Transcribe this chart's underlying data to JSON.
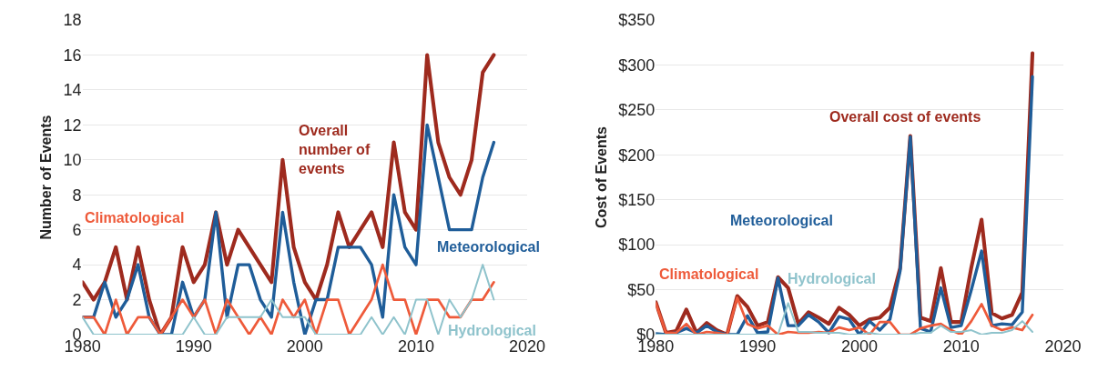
{
  "chart_data": [
    {
      "type": "line",
      "ylabel": "Number of Events",
      "x": [
        1980,
        1981,
        1982,
        1983,
        1984,
        1985,
        1986,
        1987,
        1988,
        1989,
        1990,
        1991,
        1992,
        1993,
        1994,
        1995,
        1996,
        1997,
        1998,
        1999,
        2000,
        2001,
        2002,
        2003,
        2004,
        2005,
        2006,
        2007,
        2008,
        2009,
        2010,
        2011,
        2012,
        2013,
        2014,
        2015,
        2016,
        2017
      ],
      "series": [
        {
          "name": "Overall number of events",
          "color": "#9e2a1e",
          "values": [
            3,
            2,
            3,
            5,
            2,
            5,
            2,
            0,
            1,
            5,
            3,
            4,
            7,
            4,
            6,
            5,
            4,
            3,
            10,
            5,
            3,
            2,
            4,
            7,
            5,
            6,
            7,
            5,
            11,
            7,
            6,
            16,
            11,
            9,
            8,
            10,
            15,
            16
          ]
        },
        {
          "name": "Meteorological",
          "color": "#1f5d99",
          "values": [
            1,
            1,
            3,
            1,
            2,
            4,
            1,
            0,
            0,
            3,
            1,
            2,
            7,
            1,
            4,
            4,
            2,
            1,
            7,
            3,
            0,
            2,
            2,
            5,
            5,
            5,
            4,
            1,
            8,
            5,
            4,
            12,
            9,
            6,
            6,
            6,
            9,
            11
          ]
        },
        {
          "name": "Climatological",
          "color": "#ee5a3a",
          "values": [
            1,
            1,
            0,
            2,
            0,
            1,
            1,
            0,
            1,
            2,
            1,
            2,
            0,
            2,
            1,
            0,
            1,
            0,
            2,
            1,
            2,
            0,
            2,
            2,
            0,
            1,
            2,
            4,
            2,
            2,
            0,
            2,
            2,
            1,
            1,
            2,
            2,
            3
          ]
        },
        {
          "name": "Hydrological",
          "color": "#8fc3cc",
          "values": [
            1,
            0,
            0,
            0,
            0,
            0,
            0,
            0,
            0,
            0,
            1,
            0,
            0,
            1,
            1,
            1,
            1,
            2,
            1,
            1,
            1,
            0,
            0,
            0,
            0,
            0,
            1,
            0,
            1,
            0,
            2,
            2,
            0,
            2,
            1,
            2,
            4,
            2
          ]
        }
      ],
      "xlim": [
        1980,
        2020
      ],
      "xticks": [
        1980,
        1990,
        2000,
        2010,
        2020
      ],
      "ylim": [
        0,
        18
      ],
      "yticks": [
        0,
        2,
        4,
        6,
        8,
        10,
        12,
        14,
        16,
        18
      ],
      "grid": "y",
      "legend": false,
      "marker": "none",
      "line_style": "solid"
    },
    {
      "type": "line",
      "ylabel": "Cost of Events",
      "x": [
        1980,
        1981,
        1982,
        1983,
        1984,
        1985,
        1986,
        1987,
        1988,
        1989,
        1990,
        1991,
        1992,
        1993,
        1994,
        1995,
        1996,
        1997,
        1998,
        1999,
        2000,
        2001,
        2002,
        2003,
        2004,
        2005,
        2006,
        2007,
        2008,
        2009,
        2010,
        2011,
        2012,
        2013,
        2014,
        2015,
        2016,
        2017
      ],
      "series": [
        {
          "name": "Overall cost of events",
          "color": "#9e2a1e",
          "values": [
            36,
            2,
            4,
            28,
            2,
            13,
            5,
            0,
            43,
            31,
            10,
            14,
            64,
            52,
            12,
            25,
            19,
            12,
            30,
            22,
            10,
            17,
            19,
            30,
            74,
            221,
            19,
            15,
            74,
            14,
            14,
            75,
            128,
            24,
            18,
            22,
            47,
            313
          ]
        },
        {
          "name": "Meteorological",
          "color": "#1f5d99",
          "values": [
            1,
            0,
            2,
            7,
            2,
            10,
            3,
            0,
            0,
            21,
            2,
            3,
            63,
            10,
            10,
            22,
            14,
            2,
            20,
            17,
            0,
            15,
            5,
            17,
            71,
            220,
            7,
            3,
            52,
            8,
            10,
            50,
            93,
            10,
            12,
            11,
            25,
            287
          ]
        },
        {
          "name": "Climatological",
          "color": "#ee5a3a",
          "values": [
            35,
            2,
            2,
            12,
            0,
            3,
            2,
            0,
            41,
            12,
            7,
            10,
            0,
            3,
            2,
            2,
            3,
            2,
            8,
            5,
            8,
            0,
            14,
            14,
            0,
            0,
            7,
            10,
            12,
            5,
            0,
            15,
            34,
            10,
            5,
            8,
            5,
            22
          ]
        },
        {
          "name": "Hydrological",
          "color": "#8fc3cc",
          "values": [
            0,
            0,
            0,
            0,
            0,
            0,
            0,
            0,
            0,
            0,
            0,
            0,
            0,
            35,
            3,
            3,
            2,
            2,
            2,
            0,
            0,
            2,
            0,
            0,
            0,
            0,
            2,
            2,
            10,
            3,
            3,
            5,
            0,
            2,
            2,
            5,
            15,
            3
          ]
        }
      ],
      "xlim": [
        1980,
        2020
      ],
      "xticks": [
        1980,
        1990,
        2000,
        2010,
        2020
      ],
      "ylim": [
        0,
        350
      ],
      "yticks": [
        {
          "value": 0,
          "label": "$0"
        },
        {
          "value": 50,
          "label": "$50"
        },
        {
          "value": 100,
          "label": "$100"
        },
        {
          "value": 150,
          "label": "$150"
        },
        {
          "value": 200,
          "label": "$200"
        },
        {
          "value": 250,
          "label": "$250"
        },
        {
          "value": 300,
          "label": "$300"
        },
        {
          "value": 350,
          "label": "$350"
        }
      ],
      "grid": "y",
      "legend": false,
      "marker": "none",
      "line_style": "solid"
    }
  ]
}
